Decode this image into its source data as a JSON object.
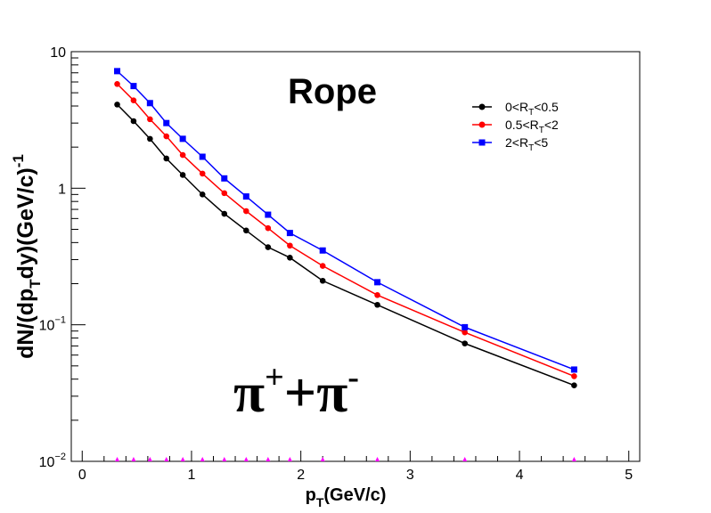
{
  "chart_data": {
    "type": "line",
    "title": "Rope",
    "annotation": {
      "base": "π",
      "plus": "+",
      "joiner": "+",
      "minus": "-"
    },
    "xlabel": {
      "base": "p",
      "sub": "T",
      "rest": "(GeV/c)"
    },
    "ylabel": {
      "p1": "dN/(dp",
      "sub": "T",
      "p2": "dy)(GeV/c)",
      "sup": "-1"
    },
    "xlim": [
      -0.1,
      5.1
    ],
    "ylim": [
      0.01,
      10
    ],
    "yscale": "log",
    "grid": false,
    "legend_position": "top-right",
    "x_ticks": [
      {
        "value": 0,
        "label": "0"
      },
      {
        "value": 1,
        "label": "1"
      },
      {
        "value": 2,
        "label": "2"
      },
      {
        "value": 3,
        "label": "3"
      },
      {
        "value": 4,
        "label": "4"
      },
      {
        "value": 5,
        "label": "5"
      }
    ],
    "y_ticks": [
      {
        "value": 10,
        "label": "10"
      },
      {
        "value": 1,
        "label": "1"
      },
      {
        "value": 0.1,
        "label_base": "10",
        "label_sup": "−1"
      },
      {
        "value": 0.01,
        "label_base": "10",
        "label_sup": "−2"
      }
    ],
    "x": [
      0.32,
      0.47,
      0.62,
      0.77,
      0.92,
      1.1,
      1.3,
      1.5,
      1.7,
      1.9,
      2.2,
      2.7,
      3.5,
      4.5
    ],
    "series": [
      {
        "name": {
          "pre": "0<R",
          "sub": "T",
          "post": "<0.5"
        },
        "color": "#000000",
        "marker": "circle",
        "values": [
          4.1,
          3.1,
          2.3,
          1.65,
          1.25,
          0.9,
          0.65,
          0.49,
          0.37,
          0.31,
          0.21,
          0.14,
          0.073,
          0.036
        ]
      },
      {
        "name": {
          "pre": "0.5<R",
          "sub": "T",
          "post": "<2"
        },
        "color": "#ff0000",
        "marker": "circle",
        "values": [
          5.8,
          4.4,
          3.2,
          2.4,
          1.75,
          1.28,
          0.92,
          0.68,
          0.51,
          0.38,
          0.27,
          0.165,
          0.088,
          0.042
        ]
      },
      {
        "name": {
          "pre": "2<R",
          "sub": "T",
          "post": "<5"
        },
        "color": "#0000ff",
        "marker": "square",
        "values": [
          7.2,
          5.6,
          4.2,
          3.0,
          2.3,
          1.7,
          1.18,
          0.87,
          0.64,
          0.47,
          0.35,
          0.205,
          0.096,
          0.047
        ]
      }
    ],
    "baseline_markers": {
      "color": "#ff00ff",
      "y": 0.01
    }
  }
}
